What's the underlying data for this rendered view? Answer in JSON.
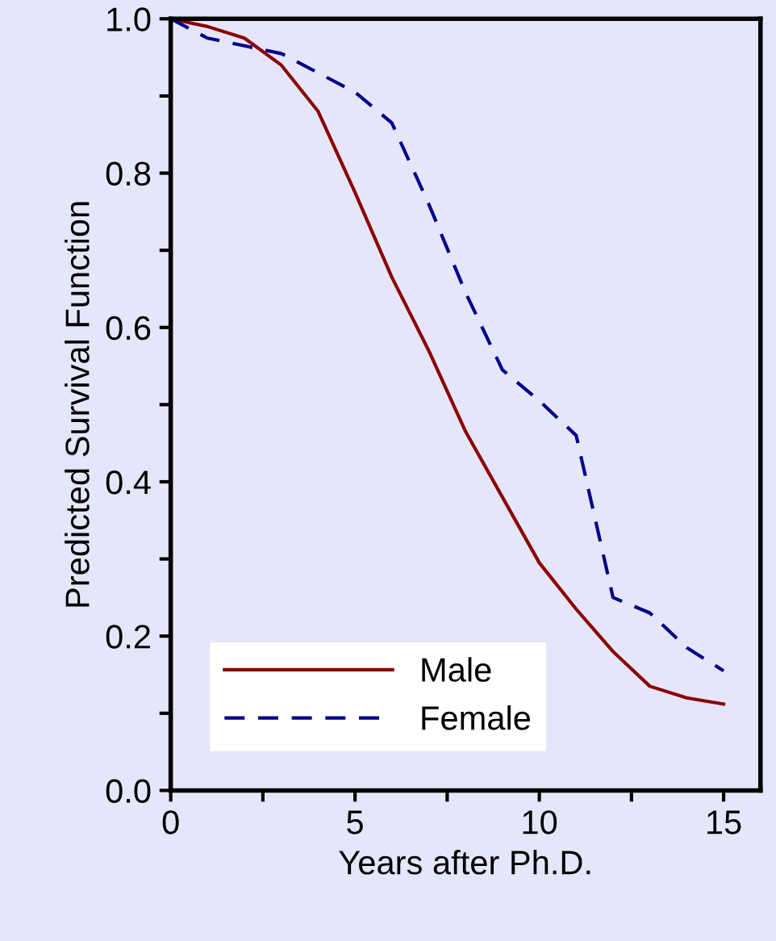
{
  "chart_data": {
    "type": "line",
    "xlabel": "Years after Ph.D.",
    "ylabel": "Predicted Survival Function",
    "x": [
      0,
      1,
      2,
      3,
      4,
      5,
      6,
      7,
      8,
      9,
      10,
      11,
      12,
      13,
      14,
      15
    ],
    "series": [
      {
        "name": "Male",
        "color": "#8b0000",
        "line_style": "solid",
        "values": [
          1.0,
          0.99,
          0.975,
          0.94,
          0.88,
          0.775,
          0.665,
          0.57,
          0.465,
          0.38,
          0.295,
          0.235,
          0.18,
          0.135,
          0.12,
          0.112
        ]
      },
      {
        "name": "Female",
        "color": "#00008b",
        "line_style": "dashed",
        "values": [
          1.0,
          0.975,
          0.965,
          0.955,
          0.93,
          0.905,
          0.865,
          0.76,
          0.645,
          0.545,
          0.505,
          0.46,
          0.25,
          0.23,
          0.185,
          0.155
        ]
      }
    ],
    "xlim": [
      0,
      16
    ],
    "ylim": [
      0,
      1
    ],
    "xticks": [
      0,
      {
        "value": 2.5,
        "label": null
      },
      5,
      {
        "value": 7.5,
        "label": null
      },
      10,
      {
        "value": 12.5,
        "label": null
      },
      15
    ],
    "yticks": [
      {
        "value": 0,
        "label": "0.0"
      },
      {
        "value": 0.1,
        "label": null
      },
      0.2,
      {
        "value": 0.3,
        "label": null
      },
      0.4,
      {
        "value": 0.5,
        "label": null
      },
      0.6,
      {
        "value": 0.7,
        "label": null
      },
      0.8,
      {
        "value": 0.9,
        "label": null
      },
      {
        "value": 1,
        "label": "1.0"
      }
    ],
    "grid": false,
    "legend": "bottom left",
    "marker": "none"
  }
}
